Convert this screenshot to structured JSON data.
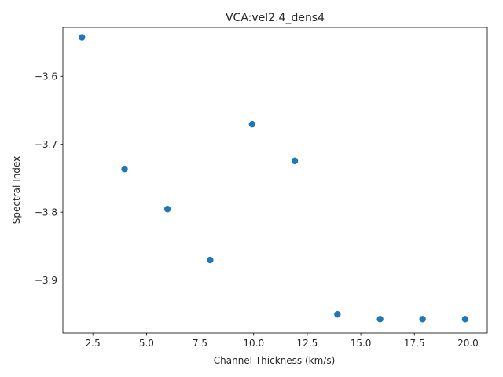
{
  "chart_data": {
    "type": "scatter",
    "title": "VCA:vel2.4_dens4",
    "xlabel": "Channel Thickness (km/s)",
    "ylabel": "Spectral Index",
    "xlim": [
      1.1,
      20.9
    ],
    "ylim": [
      -3.978,
      -3.528
    ],
    "xticks": [
      2.5,
      5.0,
      7.5,
      10.0,
      12.5,
      15.0,
      17.5,
      20.0
    ],
    "xtick_labels": [
      "2.5",
      "5.0",
      "7.5",
      "10.0",
      "12.5",
      "15.0",
      "17.5",
      "20.0"
    ],
    "yticks": [
      -3.6,
      -3.7,
      -3.8,
      -3.9
    ],
    "ytick_labels": [
      "−3.6",
      "−3.7",
      "−3.8",
      "−3.9"
    ],
    "grid": false,
    "marker_color": "#1f77b4",
    "series": [
      {
        "name": "spectral-index",
        "x": [
          1.99,
          3.98,
          5.98,
          7.97,
          9.93,
          11.92,
          13.91,
          15.9,
          17.88,
          19.87
        ],
        "y": [
          -3.5425,
          -3.7365,
          -3.7955,
          -3.8705,
          -3.6705,
          -3.7245,
          -3.9505,
          -3.9575,
          -3.9575,
          -3.9575
        ]
      }
    ]
  }
}
